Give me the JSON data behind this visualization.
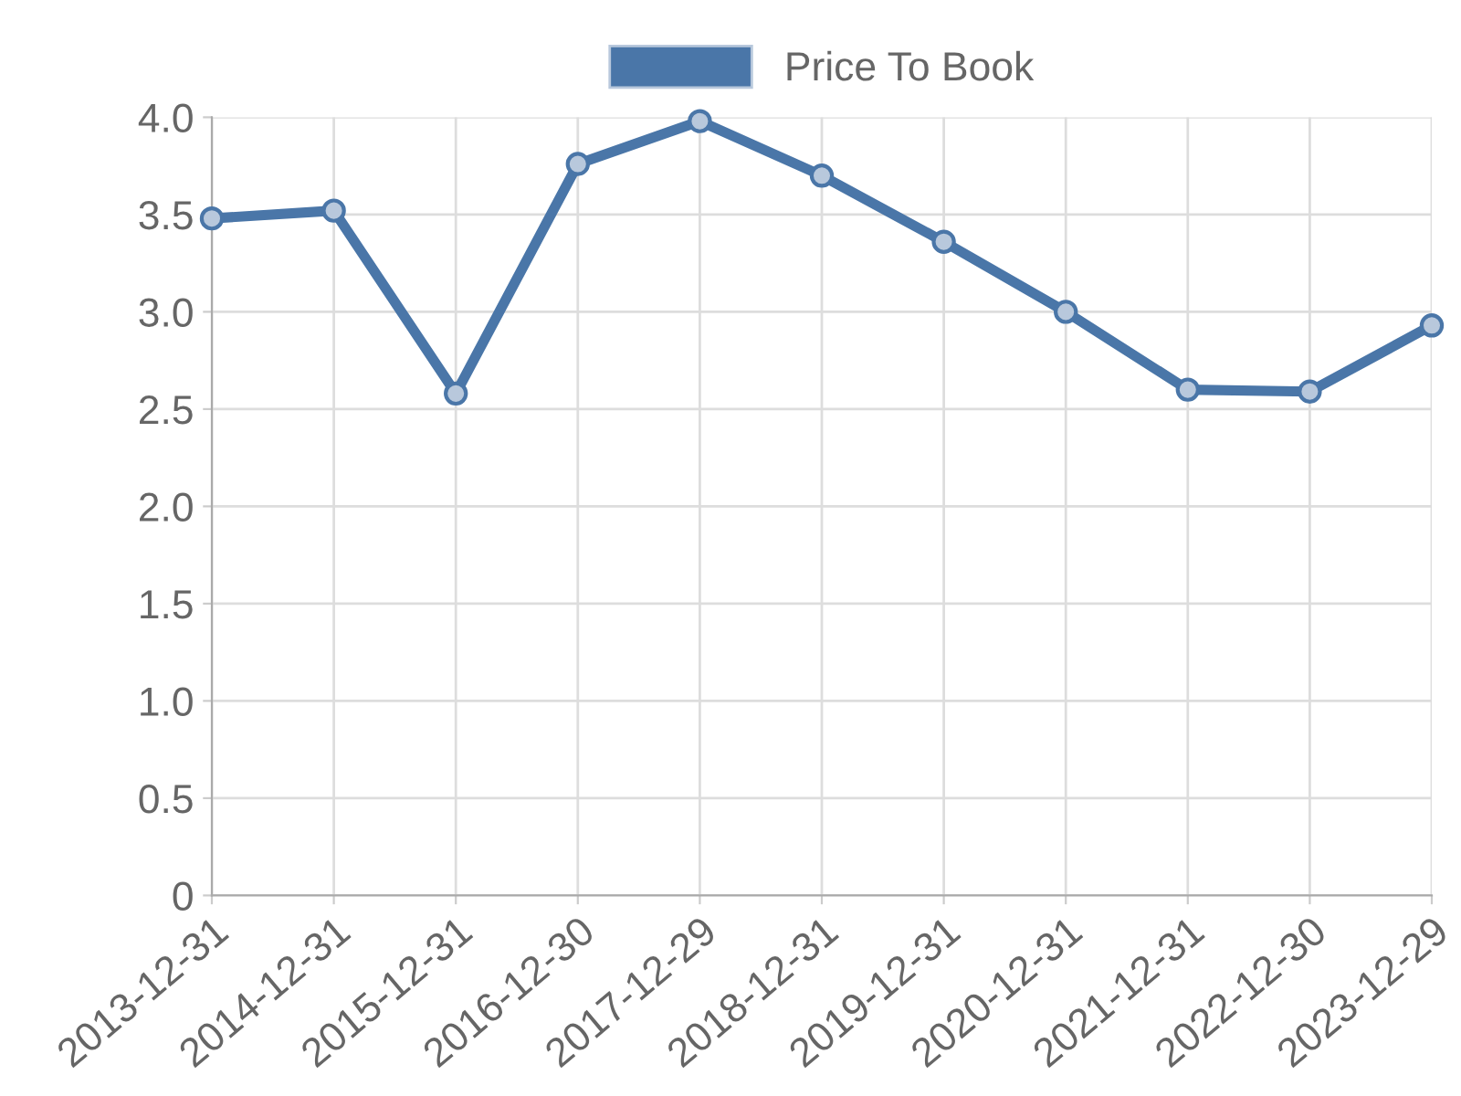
{
  "chart_data": {
    "type": "line",
    "categories": [
      "2013-12-31",
      "2014-12-31",
      "2015-12-31",
      "2016-12-30",
      "2017-12-29",
      "2018-12-31",
      "2019-12-31",
      "2020-12-31",
      "2021-12-31",
      "2022-12-30",
      "2023-12-29"
    ],
    "series": [
      {
        "name": "Price To Book",
        "color": "#4a76a8",
        "values": [
          3.48,
          3.52,
          2.58,
          3.76,
          3.98,
          3.7,
          3.36,
          3.0,
          2.6,
          2.59,
          2.93
        ]
      }
    ],
    "ylim": [
      0,
      4
    ],
    "yticks": [
      {
        "value": 0,
        "label": "0"
      },
      0.5,
      {
        "value": 1,
        "label": "1.0"
      },
      1.5,
      {
        "value": 2,
        "label": "2.0"
      },
      2.5,
      {
        "value": 3,
        "label": "3.0"
      },
      3.5,
      {
        "value": 4,
        "label": "4.0"
      }
    ],
    "grid": true,
    "legend": "top",
    "marker": "circle",
    "line_style": "solid"
  }
}
